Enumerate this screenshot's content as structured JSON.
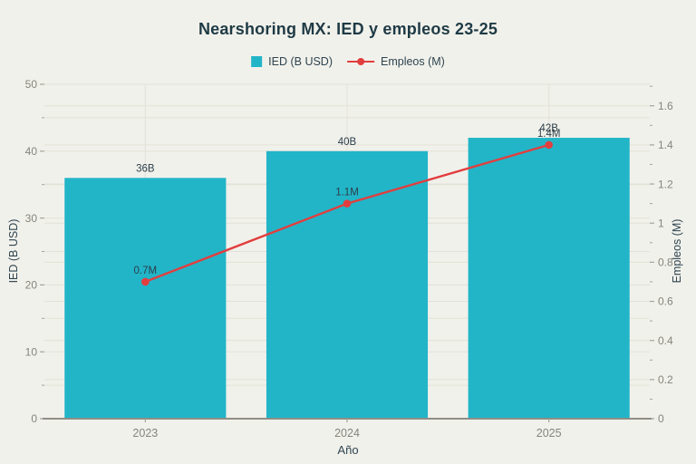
{
  "chart_data": {
    "type": "bar+line",
    "title": "Nearshoring MX: IED y empleos 23-25",
    "xlabel": "Año",
    "categories": [
      "2023",
      "2024",
      "2025"
    ],
    "series": [
      {
        "name": "IED (B USD)",
        "type": "bar",
        "axis": "left",
        "values": [
          36,
          40,
          42
        ],
        "labels": [
          "36B",
          "40B",
          "42B"
        ],
        "color": "#22b5c8"
      },
      {
        "name": "Empleos (M)",
        "type": "line",
        "axis": "right",
        "values": [
          0.7,
          1.1,
          1.4
        ],
        "labels": [
          "0.7M",
          "1.1M",
          "1.4M"
        ],
        "color": "#e23e3e"
      }
    ],
    "axes": {
      "left": {
        "label": "IED (B USD)",
        "lim": [
          0,
          50
        ],
        "ticks": [
          "0",
          "10",
          "20",
          "30",
          "40",
          "50"
        ],
        "minor_step": 5
      },
      "right": {
        "label": "Empleos (M)",
        "lim": [
          0,
          1.71
        ],
        "ticks": [
          "0",
          "0.2",
          "0.4",
          "0.6",
          "0.8",
          "1",
          "1.2",
          "1.4",
          "1.6"
        ],
        "minor_step": 0.1
      }
    },
    "legend_position": "top-center",
    "grid": true,
    "theme": {
      "background": "#f1f1eb",
      "bar_color": "#22b5c8",
      "line_color": "#e23e3e",
      "title_color": "#1e3a45",
      "axis_label_color": "#2e4450",
      "tick_label_color": "#85857d",
      "data_label_color": "#2c3e4a",
      "grid_color": "#e2e2d8",
      "axis_line_color": "#8f8d85",
      "tick_mark_color": "#a5a39a"
    }
  }
}
